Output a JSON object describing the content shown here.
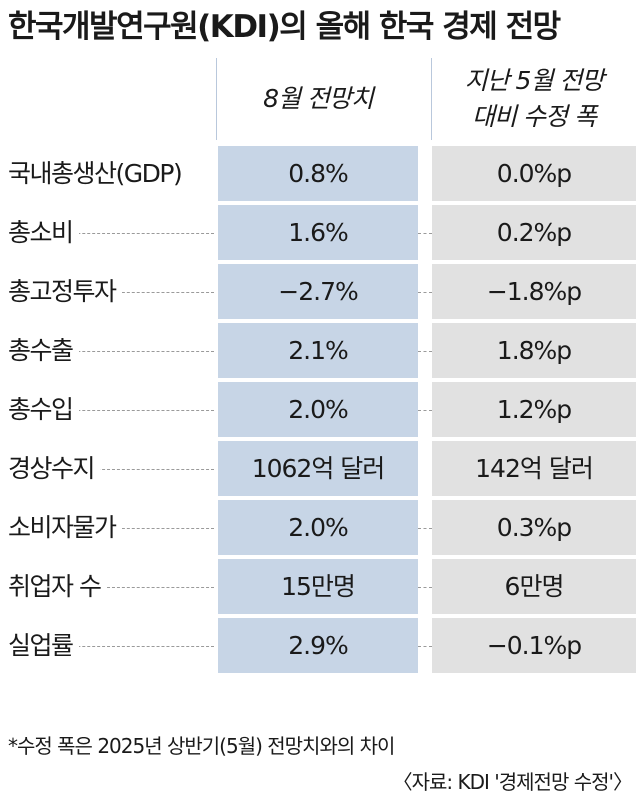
{
  "title": "한국개발연구원(KDI)의 올해 한국 경제 전망",
  "chart_data": {
    "type": "table",
    "title": "한국개발연구원(KDI)의 올해 한국 경제 전망",
    "columns": [
      {
        "lines": [
          "8월 전망치"
        ]
      },
      {
        "lines": [
          "지난 5월 전망",
          "대비 수정 폭"
        ]
      }
    ],
    "rows": [
      {
        "label": "국내총생산(GDP)",
        "august": "0.8%",
        "revision": "0.0%p"
      },
      {
        "label": "총소비",
        "august": "1.6%",
        "revision": "0.2%p"
      },
      {
        "label": "총고정투자",
        "august": "−2.7%",
        "revision": "−1.8%p"
      },
      {
        "label": "총수출",
        "august": "2.1%",
        "revision": "1.8%p"
      },
      {
        "label": "총수입",
        "august": "2.0%",
        "revision": "1.2%p"
      },
      {
        "label": "경상수지",
        "august": "1062억 달러",
        "revision": "142억 달러"
      },
      {
        "label": "소비자물가",
        "august": "2.0%",
        "revision": "0.3%p"
      },
      {
        "label": "취업자 수",
        "august": "15만명",
        "revision": "6만명"
      },
      {
        "label": "실업률",
        "august": "2.9%",
        "revision": "−0.1%p"
      }
    ]
  },
  "footnote": "*수정 폭은 2025년 상반기(5월) 전망치와의 차이",
  "source": "〈자료: KDI '경제전망 수정'〉",
  "colors": {
    "august_column": "#c7d5e6",
    "revision_column": "#e1e1e1"
  }
}
